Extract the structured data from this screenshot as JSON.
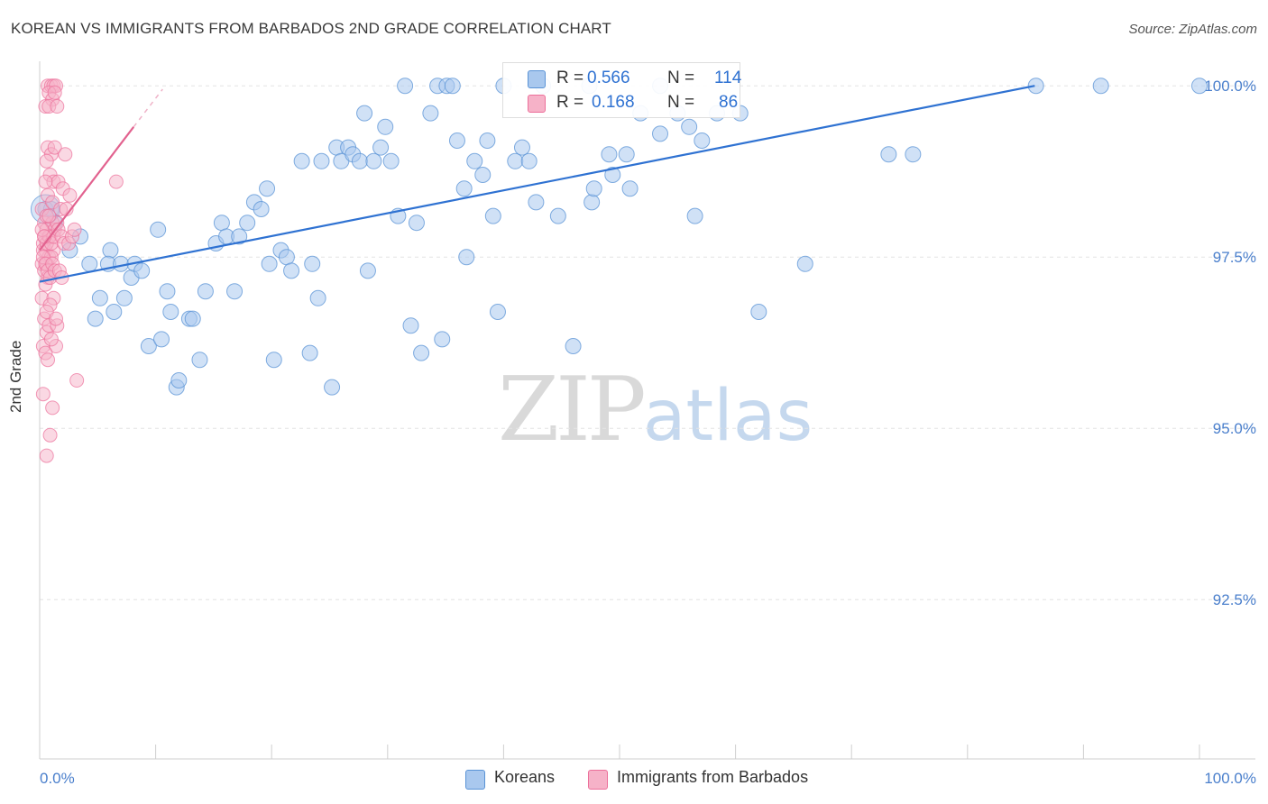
{
  "title": "KOREAN VS IMMIGRANTS FROM BARBADOS 2ND GRADE CORRELATION CHART",
  "source": "Source: ZipAtlas.com",
  "watermark": {
    "zip": "ZIP",
    "atlas": "atlas"
  },
  "stats": {
    "row1": {
      "r_label": "R =",
      "r_value": "0.566",
      "n_label": "N =",
      "n_value": "114"
    },
    "row2": {
      "r_label": "R =",
      "r_value": "0.168",
      "n_label": "N =",
      "n_value": "86"
    }
  },
  "legend": {
    "koreans": "Koreans",
    "barbados": "Immigrants from Barbados"
  },
  "colors": {
    "blue_fill": "#a9c8ee",
    "blue_stroke": "#5a93d6",
    "blue_line": "#2f72d2",
    "pink_fill": "#f6b2c8",
    "pink_stroke": "#ec6f9a",
    "pink_line": "#e2628f",
    "axis_label": "#4a7fcc",
    "grid": "#e4e4e4"
  },
  "chart_data": {
    "type": "scatter",
    "title": "KOREAN VS IMMIGRANTS FROM BARBADOS 2ND GRADE CORRELATION CHART",
    "xlabel": "",
    "ylabel": "2nd Grade",
    "x_tick_labels": [
      "0.0%",
      "100.0%"
    ],
    "y_tick_labels": [
      "100.0%",
      "97.5%",
      "95.0%",
      "92.5%"
    ],
    "y_ticks": [
      100.0,
      97.5,
      95.0,
      92.5
    ],
    "xlim": [
      0,
      100
    ],
    "ylim": [
      90.2,
      100.2
    ],
    "grid": true,
    "legend_position": "bottom",
    "series": [
      {
        "name": "Koreans",
        "r": 0.566,
        "n": 114,
        "trend": {
          "x0": 0,
          "y0": 97.14,
          "x1": 85.8,
          "y1": 100.0
        },
        "points": [
          [
            0.5,
            98.2
          ],
          [
            1.3,
            98.0
          ],
          [
            1.0,
            98.2
          ],
          [
            3.5,
            97.8
          ],
          [
            2.6,
            97.6
          ],
          [
            4.3,
            97.4
          ],
          [
            4.8,
            96.6
          ],
          [
            5.2,
            96.9
          ],
          [
            6.1,
            97.6
          ],
          [
            5.9,
            97.4
          ],
          [
            6.4,
            96.7
          ],
          [
            7.3,
            96.9
          ],
          [
            7.0,
            97.4
          ],
          [
            7.9,
            97.2
          ],
          [
            8.2,
            97.4
          ],
          [
            8.8,
            97.3
          ],
          [
            9.4,
            96.2
          ],
          [
            10.5,
            96.3
          ],
          [
            10.2,
            97.9
          ],
          [
            11.0,
            97.0
          ],
          [
            11.3,
            96.7
          ],
          [
            11.8,
            95.6
          ],
          [
            12.0,
            95.7
          ],
          [
            12.9,
            96.6
          ],
          [
            13.2,
            96.6
          ],
          [
            13.8,
            96.0
          ],
          [
            14.3,
            97.0
          ],
          [
            15.2,
            97.7
          ],
          [
            15.7,
            98.0
          ],
          [
            16.1,
            97.8
          ],
          [
            16.8,
            97.0
          ],
          [
            17.2,
            97.8
          ],
          [
            17.9,
            98.0
          ],
          [
            18.5,
            98.3
          ],
          [
            19.1,
            98.2
          ],
          [
            19.6,
            98.5
          ],
          [
            19.8,
            97.4
          ],
          [
            20.2,
            96.0
          ],
          [
            20.8,
            97.6
          ],
          [
            21.3,
            97.5
          ],
          [
            21.7,
            97.3
          ],
          [
            22.6,
            98.9
          ],
          [
            23.3,
            96.1
          ],
          [
            23.5,
            97.4
          ],
          [
            24.0,
            96.9
          ],
          [
            24.3,
            98.9
          ],
          [
            25.2,
            95.6
          ],
          [
            25.6,
            99.1
          ],
          [
            26.0,
            98.9
          ],
          [
            26.6,
            99.1
          ],
          [
            27.0,
            99.0
          ],
          [
            27.6,
            98.9
          ],
          [
            28.0,
            99.6
          ],
          [
            28.3,
            97.3
          ],
          [
            28.8,
            98.9
          ],
          [
            29.4,
            99.1
          ],
          [
            29.8,
            99.4
          ],
          [
            30.3,
            98.9
          ],
          [
            30.9,
            98.1
          ],
          [
            31.5,
            100.0
          ],
          [
            32.0,
            96.5
          ],
          [
            32.5,
            98.0
          ],
          [
            32.9,
            96.1
          ],
          [
            33.7,
            99.6
          ],
          [
            34.3,
            100.0
          ],
          [
            34.7,
            96.3
          ],
          [
            35.1,
            100.0
          ],
          [
            35.6,
            100.0
          ],
          [
            36.0,
            99.2
          ],
          [
            36.6,
            98.5
          ],
          [
            36.8,
            97.5
          ],
          [
            37.5,
            98.9
          ],
          [
            38.2,
            98.7
          ],
          [
            38.6,
            99.2
          ],
          [
            39.1,
            98.1
          ],
          [
            39.5,
            96.7
          ],
          [
            40.0,
            100.0
          ],
          [
            41.0,
            98.9
          ],
          [
            41.6,
            99.1
          ],
          [
            42.2,
            98.9
          ],
          [
            42.8,
            98.3
          ],
          [
            43.4,
            100.0
          ],
          [
            44.7,
            98.1
          ],
          [
            46.0,
            96.2
          ],
          [
            47.4,
            100.0
          ],
          [
            47.6,
            98.3
          ],
          [
            47.8,
            98.5
          ],
          [
            49.1,
            99.0
          ],
          [
            49.4,
            98.7
          ],
          [
            50.6,
            99.0
          ],
          [
            50.9,
            98.5
          ],
          [
            51.8,
            99.6
          ],
          [
            53.5,
            99.3
          ],
          [
            53.5,
            100.0
          ],
          [
            55.0,
            99.6
          ],
          [
            56.0,
            99.4
          ],
          [
            56.5,
            98.1
          ],
          [
            57.1,
            99.2
          ],
          [
            58.4,
            99.6
          ],
          [
            60.4,
            99.6
          ],
          [
            62.0,
            96.7
          ],
          [
            66.0,
            97.4
          ],
          [
            73.2,
            99.0
          ],
          [
            75.3,
            99.0
          ],
          [
            85.9,
            100.0
          ],
          [
            91.5,
            100.0
          ],
          [
            100.0,
            100.0
          ]
        ]
      },
      {
        "name": "Immigrants from Barbados",
        "r": 0.168,
        "n": 86,
        "trend": {
          "x0": 0,
          "y0": 97.6,
          "x1": 8.1,
          "y1": 99.4
        },
        "trend_dashed": {
          "x0": 8.1,
          "y0": 99.4,
          "x1": 10.6,
          "y1": 99.95
        },
        "points": [
          [
            0.2,
            98.2
          ],
          [
            0.4,
            98.0
          ],
          [
            0.6,
            97.9
          ],
          [
            0.3,
            97.7
          ],
          [
            0.5,
            97.6
          ],
          [
            0.8,
            97.5
          ],
          [
            0.2,
            97.4
          ],
          [
            0.4,
            97.3
          ],
          [
            0.7,
            97.2
          ],
          [
            0.3,
            97.6
          ],
          [
            0.9,
            97.8
          ],
          [
            1.1,
            98.0
          ],
          [
            1.3,
            97.9
          ],
          [
            1.5,
            98.0
          ],
          [
            1.2,
            97.6
          ],
          [
            0.6,
            97.4
          ],
          [
            0.5,
            97.1
          ],
          [
            1.0,
            97.5
          ],
          [
            0.2,
            96.9
          ],
          [
            0.4,
            96.6
          ],
          [
            0.6,
            96.4
          ],
          [
            0.3,
            96.2
          ],
          [
            0.8,
            96.5
          ],
          [
            1.2,
            96.9
          ],
          [
            1.5,
            96.5
          ],
          [
            1.4,
            96.2
          ],
          [
            0.5,
            96.1
          ],
          [
            0.3,
            95.5
          ],
          [
            1.1,
            95.3
          ],
          [
            0.9,
            94.9
          ],
          [
            0.6,
            94.6
          ],
          [
            3.2,
            95.7
          ],
          [
            0.7,
            100.0
          ],
          [
            1.0,
            100.0
          ],
          [
            1.2,
            100.0
          ],
          [
            1.4,
            100.0
          ],
          [
            0.8,
            99.9
          ],
          [
            1.1,
            99.8
          ],
          [
            1.3,
            99.9
          ],
          [
            0.5,
            99.7
          ],
          [
            0.8,
            99.7
          ],
          [
            1.5,
            99.7
          ],
          [
            0.7,
            99.1
          ],
          [
            1.0,
            99.0
          ],
          [
            1.3,
            99.1
          ],
          [
            2.2,
            99.0
          ],
          [
            0.6,
            98.9
          ],
          [
            0.9,
            98.7
          ],
          [
            1.2,
            98.6
          ],
          [
            1.6,
            98.6
          ],
          [
            2.0,
            98.5
          ],
          [
            0.5,
            98.6
          ],
          [
            0.7,
            98.4
          ],
          [
            1.1,
            98.3
          ],
          [
            1.8,
            98.2
          ],
          [
            2.3,
            98.2
          ],
          [
            2.6,
            98.4
          ],
          [
            0.4,
            97.8
          ],
          [
            0.6,
            97.7
          ],
          [
            0.8,
            97.8
          ],
          [
            1.0,
            97.7
          ],
          [
            1.2,
            97.8
          ],
          [
            0.3,
            97.5
          ],
          [
            0.5,
            97.4
          ],
          [
            0.7,
            97.3
          ],
          [
            0.9,
            97.2
          ],
          [
            1.1,
            97.4
          ],
          [
            1.3,
            97.3
          ],
          [
            0.2,
            97.9
          ],
          [
            0.4,
            97.8
          ],
          [
            0.6,
            98.1
          ],
          [
            0.8,
            98.1
          ],
          [
            1.6,
            97.9
          ],
          [
            1.9,
            97.8
          ],
          [
            2.1,
            97.7
          ],
          [
            2.5,
            97.7
          ],
          [
            2.8,
            97.8
          ],
          [
            3.0,
            97.9
          ],
          [
            6.6,
            98.6
          ],
          [
            1.7,
            97.3
          ],
          [
            1.9,
            97.2
          ],
          [
            0.9,
            96.8
          ],
          [
            0.6,
            96.7
          ],
          [
            1.4,
            96.6
          ],
          [
            1.0,
            96.3
          ],
          [
            0.7,
            96.0
          ]
        ]
      }
    ]
  }
}
